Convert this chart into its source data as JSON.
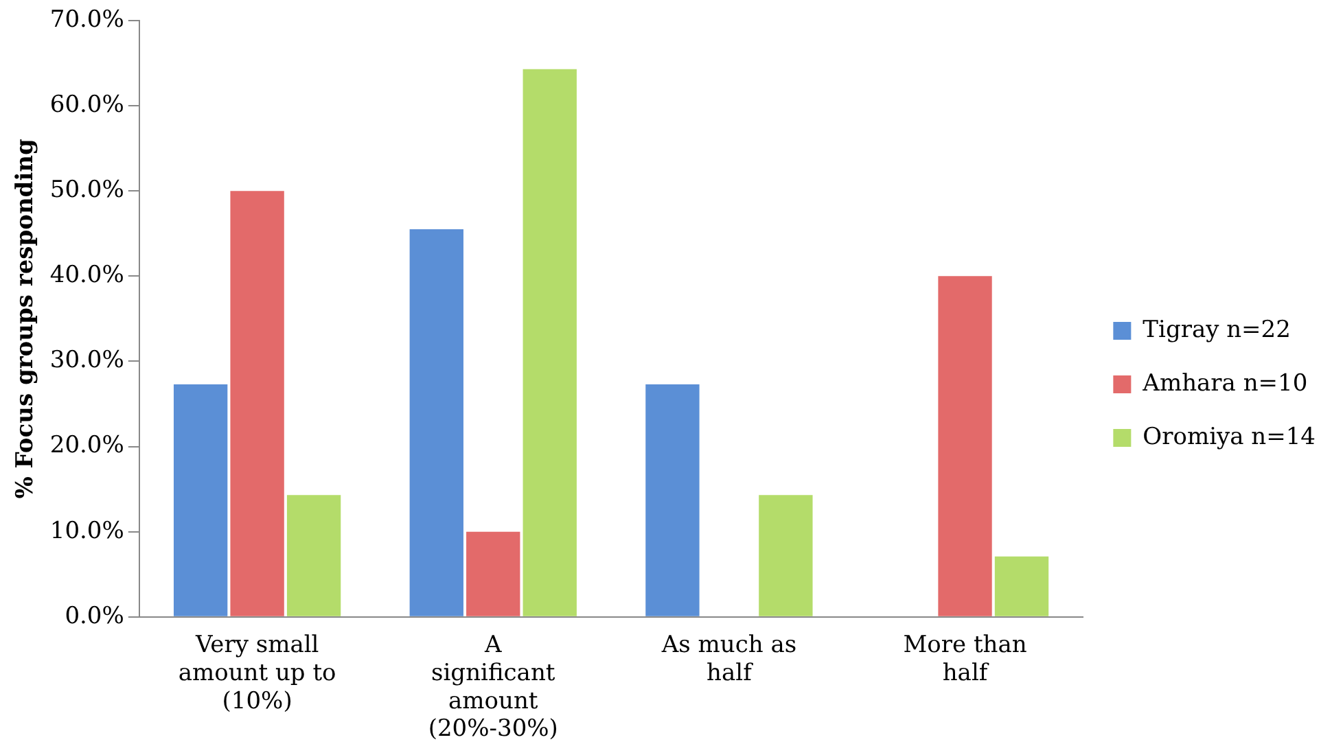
{
  "chart_data": {
    "type": "bar",
    "ylabel": "% Focus groups responding",
    "categories": [
      "Very small amount up to (10%)",
      "A significant amount (20%-30%)",
      "As much as half",
      "More than half"
    ],
    "series": [
      {
        "name": "Tigray n=22",
        "color": "#5b8fd6",
        "values": [
          27.3,
          45.5,
          27.3,
          0
        ]
      },
      {
        "name": "Amhara n=10",
        "color": "#e36a6a",
        "values": [
          50.0,
          10.0,
          0,
          40.0
        ]
      },
      {
        "name": "Oromiya n=14",
        "color": "#b4dc6a",
        "values": [
          14.3,
          64.3,
          14.3,
          7.1
        ]
      }
    ],
    "ylim": [
      0,
      70
    ],
    "yticks": [
      {
        "value": 0,
        "label": "0.0%"
      },
      {
        "value": 10,
        "label": "10.0%"
      },
      {
        "value": 20,
        "label": "20.0%"
      },
      {
        "value": 30,
        "label": "30.0%"
      },
      {
        "value": 40,
        "label": "40.0%"
      },
      {
        "value": 50,
        "label": "50.0%"
      },
      {
        "value": 60,
        "label": "60.0%"
      },
      {
        "value": 70,
        "label": "70.0%"
      }
    ],
    "grid": false,
    "legend": "right"
  }
}
